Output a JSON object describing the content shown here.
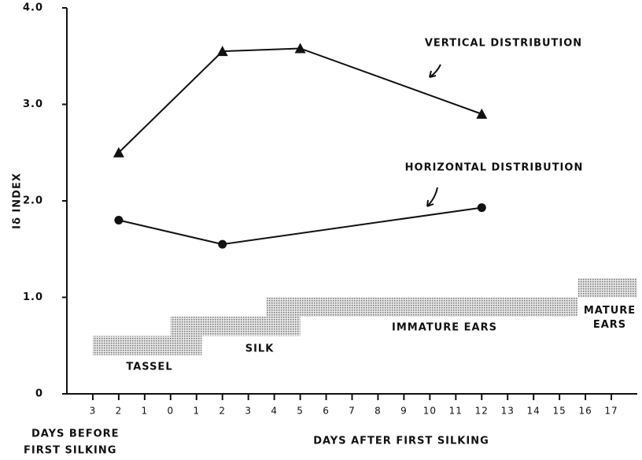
{
  "chart_data": {
    "type": "line",
    "y_label": "Iδ INDEX",
    "x_label_before": [
      "DAYS BEFORE",
      "FIRST SILKING"
    ],
    "x_label_after": "DAYS AFTER FIRST SILKING",
    "xlim": [
      -4,
      18
    ],
    "xticks": [
      {
        "value": -3,
        "label": "3"
      },
      {
        "value": -2,
        "label": "2"
      },
      {
        "value": -1,
        "label": "1"
      },
      0,
      1,
      2,
      3,
      4,
      5,
      6,
      7,
      8,
      9,
      10,
      11,
      12,
      13,
      14,
      15,
      16,
      17
    ],
    "ylim": [
      0,
      4
    ],
    "yticks": [
      0,
      {
        "value": 1,
        "label": "1.0"
      },
      {
        "value": 2,
        "label": "2.0"
      },
      {
        "value": 3,
        "label": "3.0"
      },
      {
        "value": 4,
        "label": "4.0"
      }
    ],
    "series": [
      {
        "name": "VERTICAL DISTRIBUTION",
        "color": "#111111",
        "marker": "triangle",
        "x": [
          -2,
          2,
          5,
          12
        ],
        "values": [
          2.5,
          3.55,
          3.58,
          2.9
        ]
      },
      {
        "name": "HORIZONTAL DISTRIBUTION",
        "color": "#111111",
        "marker": "circle",
        "x": [
          -2,
          2,
          12
        ],
        "values": [
          1.8,
          1.55,
          1.93
        ]
      }
    ],
    "phases": [
      {
        "name": "TASSEL",
        "start": -3,
        "end": 1.2,
        "low": 0.4,
        "high": 0.6
      },
      {
        "name": "SILK",
        "start": 0,
        "end": 5,
        "low": 0.6,
        "high": 0.8
      },
      {
        "name": "IMMATURE EARS",
        "start": 3.7,
        "end": 15.7,
        "low": 0.8,
        "high": 1.0
      },
      {
        "name": "MATURE EARS",
        "start": 15.7,
        "end": 18,
        "low": 1.0,
        "high": 1.2
      }
    ]
  }
}
